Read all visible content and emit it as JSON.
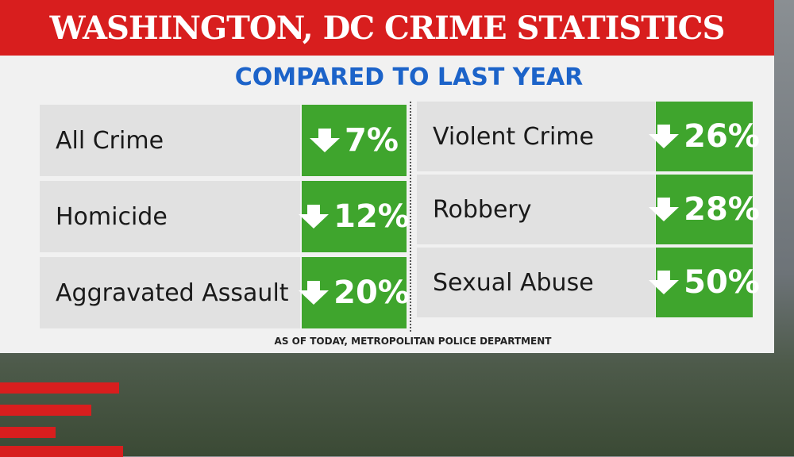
{
  "header": {
    "title": "WASHINGTON, DC CRIME STATISTICS",
    "subtitle": "COMPARED TO LAST YEAR"
  },
  "columns": [
    {
      "rows": [
        {
          "label": "All Crime",
          "value": "7%"
        },
        {
          "label": "Homicide",
          "value": "12%"
        },
        {
          "label": "Aggravated Assault",
          "value": "20%"
        }
      ]
    },
    {
      "rows": [
        {
          "label": "Violent Crime",
          "value": "26%"
        },
        {
          "label": "Robbery",
          "value": "28%"
        },
        {
          "label": "Sexual Abuse",
          "value": "50%"
        }
      ]
    }
  ],
  "footer": "AS OF TODAY, METROPOLITAN POLICE DEPARTMENT"
}
